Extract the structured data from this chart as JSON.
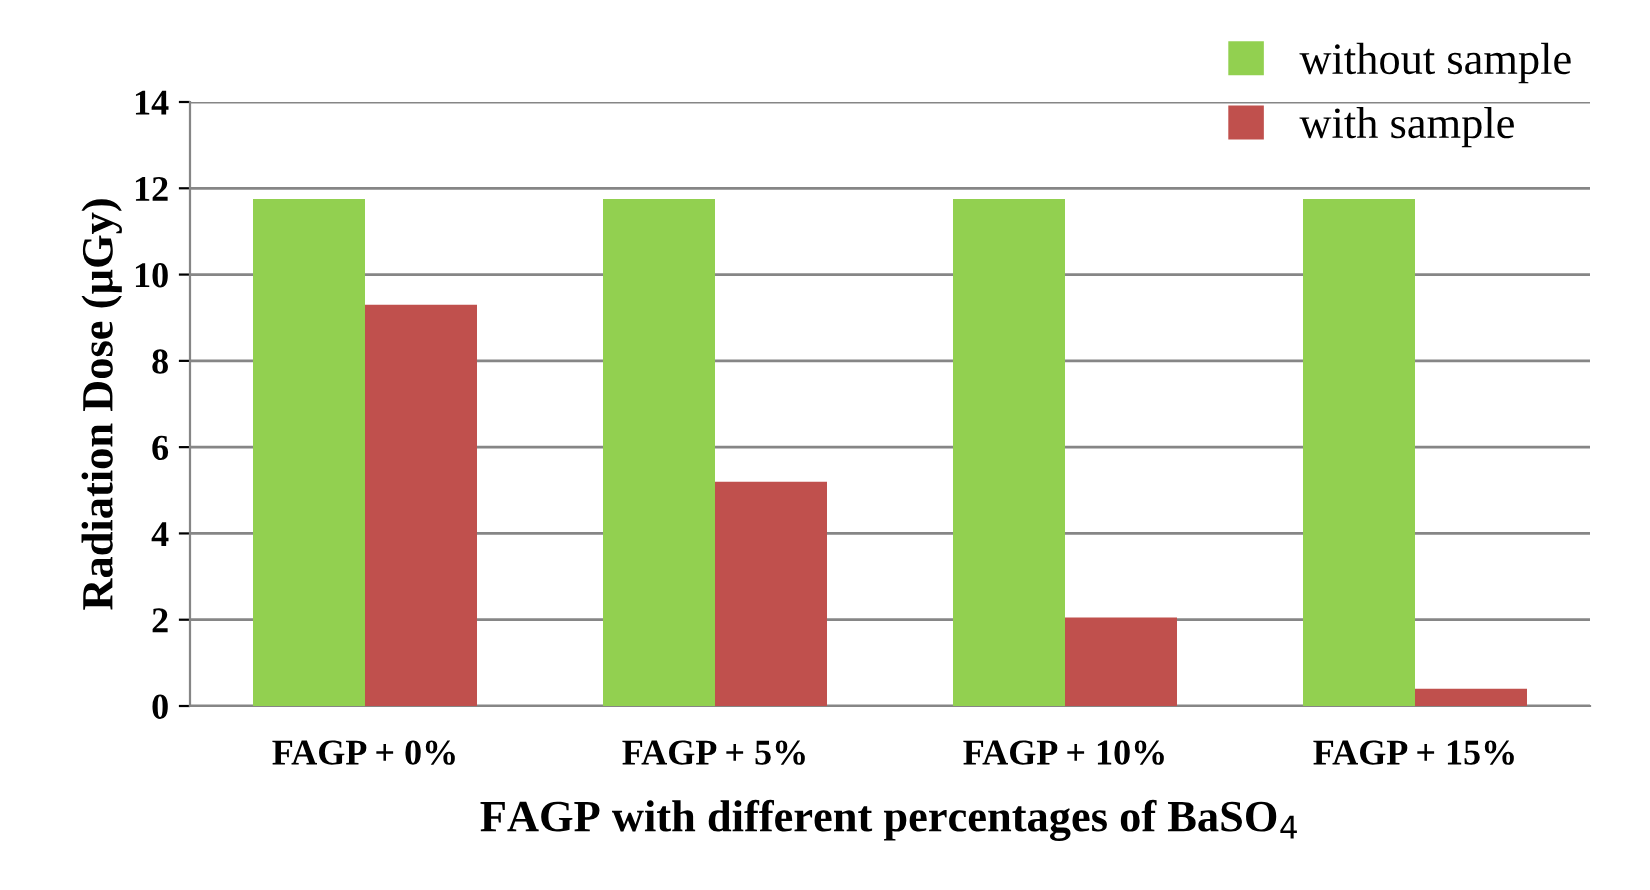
{
  "chart_data": {
    "type": "bar",
    "xlabel": "FAGP with different percentages of BaSO$_{4}$",
    "ylabel": "Radiation Dose (µGy)",
    "categories": [
      "FAGP + 0%",
      "FAGP + 5%",
      "FAGP + 10%",
      "FAGP + 15%"
    ],
    "series": [
      {
        "name": "without sample",
        "color": "#92d050",
        "values": [
          11.75,
          11.75,
          11.75,
          11.75
        ]
      },
      {
        "name": "with sample",
        "color": "#c0504d",
        "values": [
          9.3,
          5.2,
          2.05,
          0.4
        ]
      }
    ],
    "ylim": [
      0,
      14
    ],
    "yticks": [
      0,
      2,
      4,
      6,
      8,
      10,
      12,
      14
    ],
    "grid": "y",
    "legend": "top right"
  }
}
